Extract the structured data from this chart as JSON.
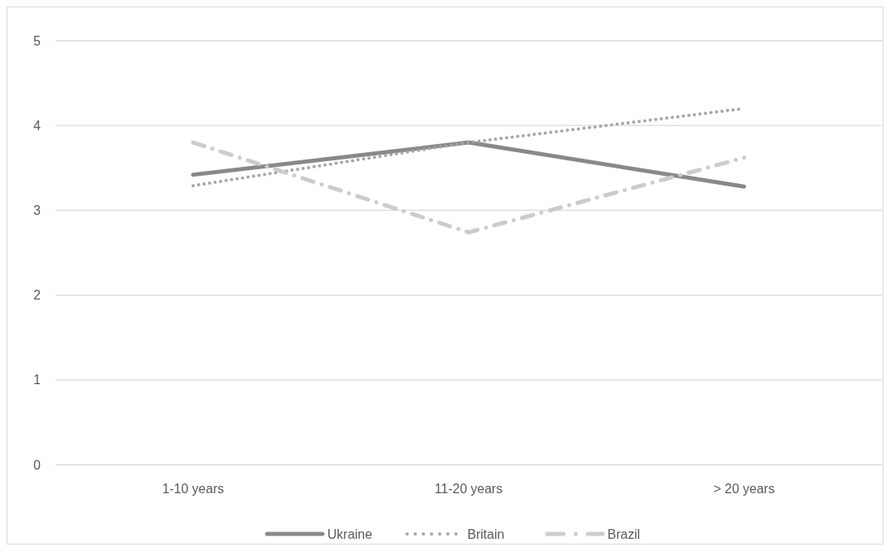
{
  "chart_data": {
    "type": "line",
    "categories": [
      "1-10 years",
      "11-20 years",
      "> 20 years"
    ],
    "ylim": [
      0,
      5
    ],
    "yticks": [
      0,
      1,
      2,
      3,
      4,
      5
    ],
    "grid": "y",
    "legend": "bottom",
    "series": [
      {
        "name": "Ukraine",
        "color": "#898989",
        "line_style": "solid",
        "values": [
          3.42,
          3.8,
          3.28
        ]
      },
      {
        "name": "Britain",
        "color": "#a5a5a5",
        "line_style": "dotted",
        "values": [
          3.29,
          3.8,
          4.2
        ]
      },
      {
        "name": "Brazil",
        "color": "#cccccc",
        "line_style": "dashdot",
        "values": [
          3.8,
          2.74,
          3.62
        ]
      }
    ]
  }
}
